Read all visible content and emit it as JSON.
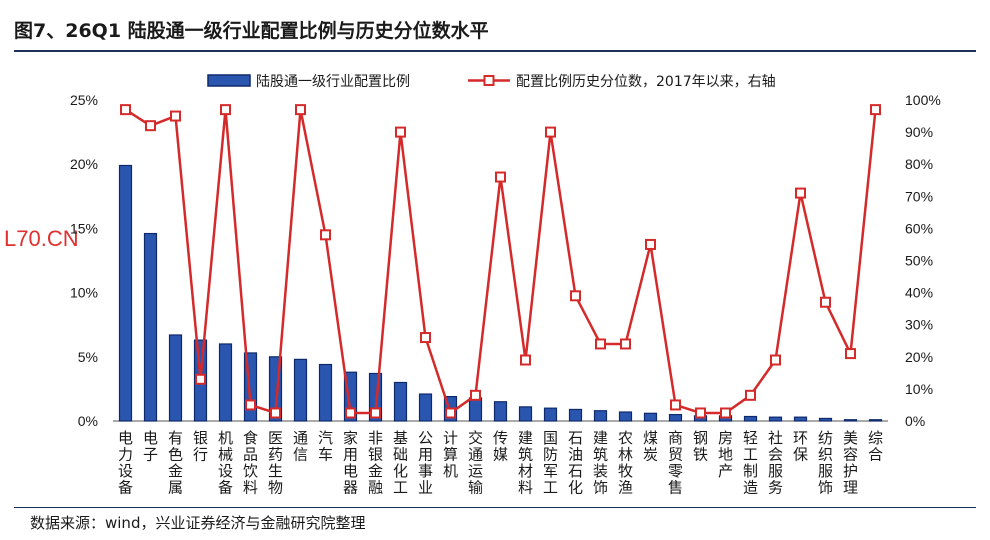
{
  "title": "图7、26Q1 陆股通一级行业配置比例与历史分位数水平",
  "source": "数据来源：wind，兴业证券经济与金融研究院整理",
  "watermark": "L70.CN",
  "chart_data": {
    "type": "bar+line",
    "categories": [
      "电力设备",
      "电子",
      "有色金属",
      "银行",
      "机械设备",
      "食品饮料",
      "医药生物",
      "通信",
      "汽车",
      "家用电器",
      "非银金融",
      "基础化工",
      "公用事业",
      "计算机",
      "交通运输",
      "传媒",
      "建筑材料",
      "国防军工",
      "石油石化",
      "建筑装饰",
      "农林牧渔",
      "煤炭",
      "商贸零售",
      "钢铁",
      "房地产",
      "轻工制造",
      "社会服务",
      "环保",
      "纺织服饰",
      "美容护理",
      "综合"
    ],
    "series": [
      {
        "name": "陆股通一级行业配置比例",
        "type": "bar",
        "axis": "left",
        "color": "#2a56b0",
        "values": [
          19.9,
          14.6,
          6.7,
          6.3,
          6.0,
          5.3,
          5.0,
          4.8,
          4.4,
          3.8,
          3.7,
          3.0,
          2.1,
          1.9,
          1.8,
          1.5,
          1.1,
          1.0,
          0.9,
          0.8,
          0.7,
          0.6,
          0.5,
          0.4,
          0.4,
          0.35,
          0.3,
          0.3,
          0.2,
          0.1,
          0.1
        ]
      },
      {
        "name": "配置比例历史分位数，2017年以来，右轴",
        "type": "line",
        "axis": "right",
        "color": "#d42a2a",
        "values": [
          97,
          92,
          95,
          13,
          97,
          5,
          2.5,
          97,
          58,
          2.5,
          2.5,
          90,
          26,
          2.5,
          8,
          76,
          19,
          90,
          39,
          24,
          24,
          55,
          5,
          2.5,
          2.5,
          8,
          19,
          71,
          37,
          21,
          97
        ]
      }
    ],
    "y_left": {
      "ticks": [
        "0%",
        "5%",
        "10%",
        "15%",
        "20%",
        "25%"
      ],
      "range": [
        0,
        25
      ]
    },
    "y_right": {
      "ticks": [
        "0%",
        "10%",
        "20%",
        "30%",
        "40%",
        "50%",
        "60%",
        "70%",
        "80%",
        "90%",
        "100%"
      ],
      "range": [
        0,
        100
      ]
    },
    "legend": {
      "placement": "top"
    },
    "grid": false
  }
}
